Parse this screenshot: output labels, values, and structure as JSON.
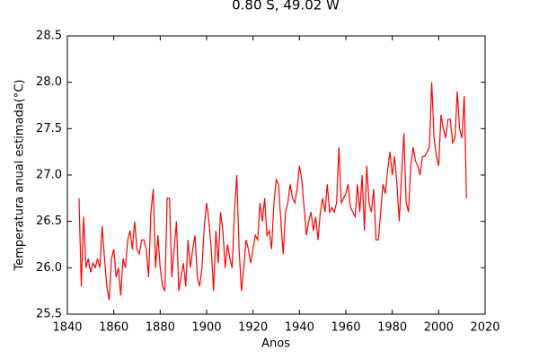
{
  "chart_data": {
    "type": "line",
    "title": "0.80 S, 49.02 W",
    "xlabel": "Anos",
    "ylabel": "Temperatura anual estimada(°C)",
    "xlim": [
      1840,
      2020
    ],
    "xticks": [
      1840,
      1860,
      1880,
      1900,
      1920,
      1940,
      1960,
      1980,
      2000,
      2020
    ],
    "ylim": [
      25.5,
      28.5
    ],
    "yticks": [
      25.5,
      {
        "value": 26,
        "label": "26.0"
      },
      26.5,
      {
        "value": 27,
        "label": "27.0"
      },
      27.5,
      {
        "value": 28,
        "label": "28.0"
      },
      28.5
    ],
    "grid": false,
    "x": [
      1845,
      1846,
      1847,
      1848,
      1849,
      1850,
      1851,
      1852,
      1853,
      1854,
      1855,
      1856,
      1857,
      1858,
      1859,
      1860,
      1861,
      1862,
      1863,
      1864,
      1865,
      1866,
      1867,
      1868,
      1869,
      1870,
      1871,
      1872,
      1873,
      1874,
      1875,
      1876,
      1877,
      1878,
      1879,
      1880,
      1881,
      1882,
      1883,
      1884,
      1885,
      1886,
      1887,
      1888,
      1889,
      1890,
      1891,
      1892,
      1893,
      1894,
      1895,
      1896,
      1897,
      1898,
      1899,
      1900,
      1901,
      1902,
      1903,
      1904,
      1905,
      1906,
      1907,
      1908,
      1909,
      1910,
      1911,
      1912,
      1913,
      1914,
      1915,
      1916,
      1917,
      1918,
      1919,
      1920,
      1921,
      1922,
      1923,
      1924,
      1925,
      1926,
      1927,
      1928,
      1929,
      1930,
      1931,
      1932,
      1933,
      1934,
      1935,
      1936,
      1937,
      1938,
      1939,
      1940,
      1941,
      1942,
      1943,
      1944,
      1945,
      1946,
      1947,
      1948,
      1949,
      1950,
      1951,
      1952,
      1953,
      1954,
      1955,
      1956,
      1957,
      1958,
      1959,
      1960,
      1961,
      1962,
      1963,
      1964,
      1965,
      1966,
      1967,
      1968,
      1969,
      1970,
      1971,
      1972,
      1973,
      1974,
      1975,
      1976,
      1977,
      1978,
      1979,
      1980,
      1981,
      1982,
      1983,
      1984,
      1985,
      1986,
      1987,
      1988,
      1989,
      1990,
      1991,
      1992,
      1993,
      1994,
      1995,
      1996,
      1997,
      1998,
      1999,
      2000,
      2001,
      2002,
      2003,
      2004,
      2005,
      2006,
      2007,
      2008,
      2009,
      2010,
      2011,
      2012
    ],
    "series": [
      {
        "color": "#ff0000",
        "values": [
          26.75,
          25.8,
          26.55,
          26.0,
          26.1,
          25.95,
          26.05,
          26.0,
          26.1,
          26.0,
          26.45,
          26.1,
          25.8,
          25.65,
          26.1,
          26.2,
          25.9,
          26.0,
          25.7,
          26.1,
          26.0,
          26.3,
          26.4,
          26.2,
          26.5,
          26.2,
          26.15,
          26.3,
          26.3,
          26.2,
          25.9,
          26.6,
          26.85,
          26.0,
          26.35,
          26.0,
          25.8,
          25.75,
          26.75,
          26.75,
          25.9,
          26.2,
          26.5,
          25.75,
          25.9,
          26.05,
          25.8,
          26.3,
          26.0,
          26.2,
          26.35,
          25.9,
          25.8,
          26.0,
          26.45,
          26.7,
          26.5,
          26.2,
          25.75,
          26.4,
          26.05,
          26.6,
          26.4,
          26.0,
          26.25,
          26.1,
          26.0,
          26.6,
          27.0,
          26.2,
          25.75,
          26.0,
          26.3,
          26.2,
          26.05,
          26.2,
          26.35,
          26.3,
          26.7,
          26.5,
          26.75,
          26.35,
          26.4,
          26.2,
          26.7,
          26.95,
          26.9,
          26.5,
          26.15,
          26.6,
          26.7,
          26.9,
          26.75,
          26.7,
          26.85,
          27.1,
          26.95,
          26.65,
          26.35,
          26.5,
          26.6,
          26.4,
          26.55,
          26.3,
          26.6,
          26.75,
          26.6,
          26.9,
          26.6,
          26.65,
          26.6,
          26.7,
          27.3,
          26.7,
          26.75,
          26.8,
          26.9,
          26.65,
          26.6,
          26.55,
          26.9,
          26.6,
          27.0,
          26.4,
          27.1,
          26.7,
          26.6,
          26.85,
          26.3,
          26.3,
          26.6,
          26.9,
          26.8,
          27.05,
          27.25,
          27.0,
          27.2,
          26.9,
          26.5,
          27.0,
          27.45,
          26.7,
          26.6,
          27.1,
          27.3,
          27.15,
          27.1,
          27.0,
          27.2,
          27.2,
          27.25,
          27.3,
          28.0,
          27.4,
          27.2,
          27.1,
          27.65,
          27.5,
          27.4,
          27.6,
          27.6,
          27.35,
          27.4,
          27.9,
          27.5,
          27.4,
          27.85,
          26.75
        ]
      }
    ]
  }
}
